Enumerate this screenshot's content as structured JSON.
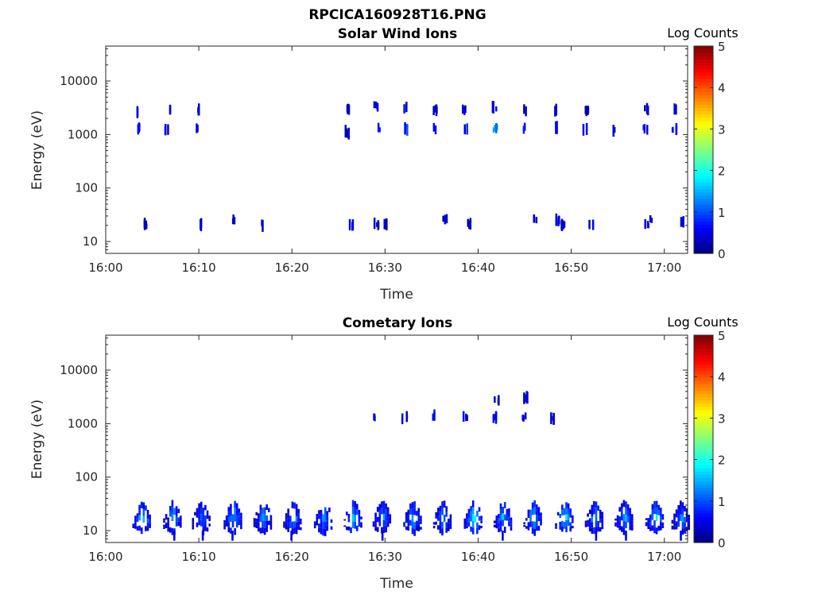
{
  "figure": {
    "title": "RPCICA160928T16.PNG"
  },
  "chart_data": [
    {
      "type": "heatmap",
      "title": "Solar Wind Ions",
      "xlabel": "Time",
      "ylabel": "Energy (eV)",
      "x_ticks": [
        "16:00",
        "16:10",
        "16:20",
        "16:30",
        "16:40",
        "16:50",
        "17:00"
      ],
      "x_range_minutes": [
        0,
        62.5
      ],
      "y_ticks": [
        "10",
        "100",
        "1000",
        "10000"
      ],
      "y_scale": "log",
      "y_range": [
        6,
        45000
      ],
      "colorbar": {
        "label": "Log Counts",
        "ticks": [
          "0",
          "1",
          "2",
          "3",
          "4",
          "5"
        ],
        "range": [
          0,
          5
        ],
        "colormap": "jet"
      },
      "patches": [
        {
          "t": 3.4,
          "e": 2700,
          "c": 0.4
        },
        {
          "t": 3.4,
          "e": 1300,
          "c": 0.5
        },
        {
          "t": 6.6,
          "e": 2900,
          "c": 0.4
        },
        {
          "t": 6.4,
          "e": 1200,
          "c": 0.5
        },
        {
          "t": 9.9,
          "e": 2900,
          "c": 0.4
        },
        {
          "t": 9.8,
          "e": 1300,
          "c": 0.5
        },
        {
          "t": 25.8,
          "e": 3000,
          "c": 0.3
        },
        {
          "t": 25.8,
          "e": 1100,
          "c": 0.3
        },
        {
          "t": 29.0,
          "e": 3400,
          "c": 0.5
        },
        {
          "t": 29.1,
          "e": 1300,
          "c": 0.9
        },
        {
          "t": 32.2,
          "e": 3100,
          "c": 0.6
        },
        {
          "t": 32.1,
          "e": 1300,
          "c": 0.8
        },
        {
          "t": 35.2,
          "e": 2900,
          "c": 0.4
        },
        {
          "t": 35.3,
          "e": 1300,
          "c": 0.6
        },
        {
          "t": 38.4,
          "e": 2900,
          "c": 0.5
        },
        {
          "t": 38.5,
          "e": 1300,
          "c": 0.7
        },
        {
          "t": 41.7,
          "e": 3100,
          "c": 0.6
        },
        {
          "t": 41.7,
          "e": 1300,
          "c": 1.2
        },
        {
          "t": 45.0,
          "e": 2900,
          "c": 0.5
        },
        {
          "t": 45.0,
          "e": 1300,
          "c": 1.0
        },
        {
          "t": 48.2,
          "e": 2900,
          "c": 0.4
        },
        {
          "t": 48.1,
          "e": 1300,
          "c": 0.7
        },
        {
          "t": 51.5,
          "e": 2900,
          "c": 0.3
        },
        {
          "t": 51.4,
          "e": 1300,
          "c": 0.7
        },
        {
          "t": 54.6,
          "e": 1250,
          "c": 0.6
        },
        {
          "t": 58.0,
          "e": 2900,
          "c": 0.3
        },
        {
          "t": 57.9,
          "e": 1300,
          "c": 0.8
        },
        {
          "t": 61.2,
          "e": 3000,
          "c": 0.4
        },
        {
          "t": 61.0,
          "e": 1300,
          "c": 0.8
        },
        {
          "t": 4.2,
          "e": 20,
          "c": 0.5
        },
        {
          "t": 10.0,
          "e": 21,
          "c": 0.4
        },
        {
          "t": 13.8,
          "e": 25,
          "c": 0.5
        },
        {
          "t": 16.6,
          "e": 21,
          "c": 0.4
        },
        {
          "t": 26.2,
          "e": 20,
          "c": 0.5
        },
        {
          "t": 29.0,
          "e": 21,
          "c": 0.4
        },
        {
          "t": 29.9,
          "e": 21,
          "c": 0.4
        },
        {
          "t": 36.3,
          "e": 26,
          "c": 0.4
        },
        {
          "t": 39.0,
          "e": 21,
          "c": 0.4
        },
        {
          "t": 46.1,
          "e": 26,
          "c": 0.4
        },
        {
          "t": 48.4,
          "e": 24,
          "c": 0.4
        },
        {
          "t": 49.0,
          "e": 21,
          "c": 0.4
        },
        {
          "t": 52.0,
          "e": 21,
          "c": 0.4
        },
        {
          "t": 58.0,
          "e": 21,
          "c": 0.4
        },
        {
          "t": 58.5,
          "e": 26,
          "c": 0.4
        },
        {
          "t": 61.7,
          "e": 23,
          "c": 0.4
        }
      ]
    },
    {
      "type": "heatmap",
      "title": "Cometary Ions",
      "xlabel": "Time",
      "ylabel": "Energy (eV)",
      "x_ticks": [
        "16:00",
        "16:10",
        "16:20",
        "16:30",
        "16:40",
        "16:50",
        "17:00"
      ],
      "x_range_minutes": [
        0,
        62.5
      ],
      "y_ticks": [
        "10",
        "100",
        "1000",
        "10000"
      ],
      "y_scale": "log",
      "y_range": [
        6,
        45000
      ],
      "colorbar": {
        "label": "Log Counts",
        "ticks": [
          "0",
          "1",
          "2",
          "3",
          "4",
          "5"
        ],
        "range": [
          0,
          5
        ],
        "colormap": "jet"
      },
      "bursts": [
        {
          "t": 3.8,
          "peak": 1.6
        },
        {
          "t": 7.1,
          "peak": 1.5
        },
        {
          "t": 10.2,
          "peak": 1.1
        },
        {
          "t": 13.6,
          "peak": 1.6
        },
        {
          "t": 16.8,
          "peak": 1.3
        },
        {
          "t": 20.0,
          "peak": 1.4
        },
        {
          "t": 23.3,
          "peak": 1.3
        },
        {
          "t": 26.5,
          "peak": 1.6
        },
        {
          "t": 29.6,
          "peak": 1.3
        },
        {
          "t": 32.9,
          "peak": 1.4
        },
        {
          "t": 36.1,
          "peak": 1.4
        },
        {
          "t": 39.4,
          "peak": 1.8
        },
        {
          "t": 42.6,
          "peak": 1.6
        },
        {
          "t": 45.8,
          "peak": 1.6
        },
        {
          "t": 49.2,
          "peak": 1.9
        },
        {
          "t": 52.4,
          "peak": 1.5
        },
        {
          "t": 55.6,
          "peak": 1.4
        },
        {
          "t": 58.9,
          "peak": 1.7
        },
        {
          "t": 61.7,
          "peak": 1.3
        }
      ],
      "patches": [
        {
          "t": 28.9,
          "e": 1300,
          "c": 0.4
        },
        {
          "t": 32.0,
          "e": 1300,
          "c": 0.5
        },
        {
          "t": 35.1,
          "e": 1350,
          "c": 0.6
        },
        {
          "t": 38.5,
          "e": 1300,
          "c": 0.5
        },
        {
          "t": 41.8,
          "e": 1300,
          "c": 0.6
        },
        {
          "t": 41.9,
          "e": 2800,
          "c": 0.3
        },
        {
          "t": 44.9,
          "e": 1300,
          "c": 0.5
        },
        {
          "t": 45.0,
          "e": 3000,
          "c": 0.4
        },
        {
          "t": 47.9,
          "e": 1250,
          "c": 0.4
        }
      ]
    }
  ]
}
